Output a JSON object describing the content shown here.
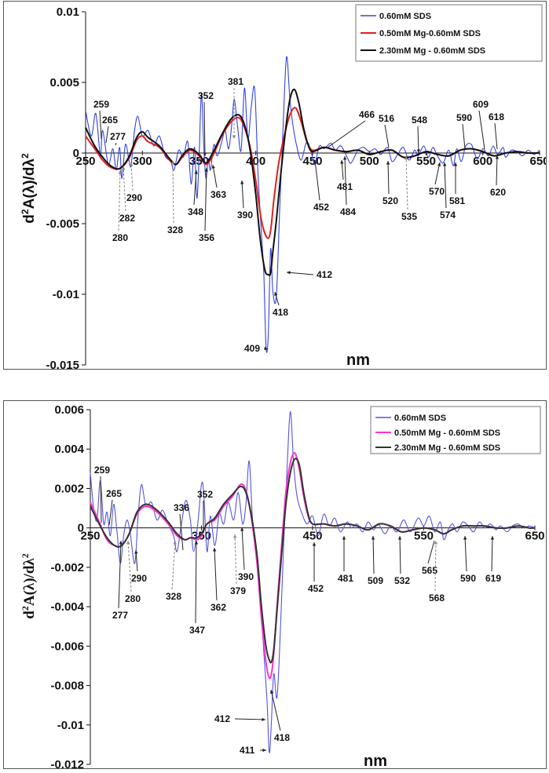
{
  "chart_data": [
    {
      "type": "line",
      "xlabel": "nm",
      "ylabel_main": "d",
      "ylabel_sup1": "2",
      "ylabel_mid": "A(λ)/dλ",
      "ylabel_sup2": "2",
      "xlim": [
        250,
        650
      ],
      "ylim": [
        -0.015,
        0.01
      ],
      "x_ticks": [
        "250",
        "300",
        "350",
        "400",
        "450",
        "500",
        "550",
        "600",
        "650"
      ],
      "x_tick_values": [
        250,
        300,
        350,
        400,
        450,
        500,
        550,
        600,
        650
      ],
      "y_ticks": [
        "0.01",
        "0.005",
        "0",
        "-0.005",
        "-0.01",
        "-0.015"
      ],
      "y_tick_values": [
        0.01,
        0.005,
        0,
        -0.005,
        -0.01,
        -0.015
      ],
      "series": [
        {
          "name": "0.60mM SDS",
          "color": "#3344dd",
          "x": [
            250,
            255,
            259,
            263,
            265,
            270,
            274,
            277,
            280,
            282,
            285,
            288,
            290,
            293,
            296,
            300,
            305,
            310,
            315,
            320,
            325,
            328,
            332,
            336,
            340,
            343,
            346,
            348,
            350,
            352,
            354,
            356,
            358,
            360,
            363,
            366,
            370,
            373,
            376,
            379,
            381,
            384,
            387,
            390,
            393,
            396,
            399,
            402,
            405,
            407,
            409,
            411,
            413,
            415,
            418,
            421,
            424,
            427,
            430,
            433,
            436,
            440,
            445,
            450,
            452,
            456,
            460,
            466,
            470,
            475,
            481,
            484,
            490,
            495,
            500,
            505,
            510,
            516,
            520,
            525,
            530,
            535,
            540,
            543,
            548,
            552,
            556,
            560,
            565,
            570,
            574,
            577,
            581,
            585,
            590,
            595,
            600,
            605,
            609,
            613,
            618,
            620,
            625,
            630,
            635,
            640,
            645,
            650
          ],
          "y": [
            0.003,
            0.0012,
            0.0028,
            -0.0002,
            0.0016,
            -0.0008,
            0.0003,
            -0.0012,
            0.0004,
            -0.0018,
            0.0006,
            -0.0004,
            -0.0009,
            0.0015,
            0.0026,
            0.0012,
            0.0016,
            0.0005,
            0.0012,
            -0.0002,
            -0.0006,
            -0.0012,
            0.0002,
            -0.0003,
            0.0008,
            -0.0022,
            0.0004,
            -0.0032,
            -0.0003,
            0.0042,
            0.0007,
            -0.0018,
            -0.0004,
            -0.0012,
            0.0006,
            -0.0002,
            0.0008,
            0.0016,
            0.0003,
            0.0022,
            0.0038,
            0.0018,
            0.0002,
            0.0046,
            0.001,
            0.0033,
            0.0045,
            -0.0016,
            -0.0058,
            -0.0085,
            -0.0138,
            -0.0128,
            -0.0068,
            -0.0098,
            -0.0102,
            -0.004,
            0.0018,
            0.0068,
            0.0038,
            0.0018,
            0.0005,
            -0.0005,
            0.0008,
            -0.0003,
            -0.0008,
            0.0005,
            0.0003,
            0.0007,
            0.0002,
            0.0005,
            -0.0004,
            -0.0007,
            0.0002,
            0.0004,
            0.0001,
            0.0003,
            -0.0001,
            0.0004,
            -0.0006,
            -0.0001,
            0.0004,
            -0.0005,
            0.0002,
            -0.0002,
            0.0005,
            -0.0003,
            0.0004,
            -0.0002,
            -0.0007,
            0.0002,
            -0.0009,
            0.0003,
            -0.0006,
            0.0005,
            0.0006,
            -0.0004,
            0.0003,
            -0.0002,
            0.0005,
            -0.0001,
            0.0004,
            -0.0003,
            0.0002,
            0.0001,
            -0.0002,
            0.0002,
            -0.0001,
            0.0002
          ]
        },
        {
          "name": "0.50mM Mg-0.60mM SDS",
          "color": "#e02020",
          "x": [
            250,
            258,
            265,
            272,
            280,
            288,
            295,
            300,
            305,
            315,
            325,
            330,
            335,
            342,
            350,
            356,
            362,
            370,
            378,
            385,
            390,
            395,
            400,
            405,
            410,
            413,
            416,
            420,
            425,
            430,
            435,
            440,
            445,
            450,
            460,
            470,
            480,
            490,
            500,
            510,
            520,
            530,
            540,
            550,
            560,
            570,
            580,
            590,
            600,
            610,
            620,
            630,
            640,
            650
          ],
          "y": [
            0.0012,
            0.0003,
            -0.0005,
            -0.001,
            -0.0011,
            -0.0004,
            0.0009,
            0.0012,
            0.0008,
            0.0004,
            -0.0006,
            -0.0008,
            -0.0003,
            0.0002,
            -0.0002,
            -0.0008,
            -0.0002,
            0.0012,
            0.0022,
            0.0025,
            0.0018,
            0.0004,
            -0.002,
            -0.0048,
            -0.006,
            -0.0055,
            -0.0032,
            -0.0008,
            0.0012,
            0.0027,
            0.0032,
            0.0022,
            0.0008,
            0.0002,
            0.0004,
            0.0002,
            0.0001,
            0.0002,
            -0.0001,
            0.0001,
            0.0002,
            -0.0003,
            -0.0002,
            0.0001,
            -0.0001,
            -0.0002,
            0.0002,
            0.0003,
            0.0001,
            -0.0002,
            0.0,
            0.0001,
            0.0,
            0.0
          ]
        },
        {
          "name": "2.30mM Mg - 0.60mM SDS",
          "color": "#111111",
          "x": [
            250,
            258,
            265,
            272,
            280,
            288,
            295,
            300,
            305,
            315,
            325,
            330,
            335,
            342,
            350,
            356,
            362,
            370,
            378,
            385,
            390,
            395,
            400,
            404,
            408,
            411,
            413,
            415,
            418,
            422,
            426,
            430,
            434,
            438,
            442,
            446,
            450,
            460,
            470,
            480,
            490,
            500,
            510,
            520,
            530,
            540,
            550,
            560,
            570,
            580,
            590,
            600,
            610,
            620,
            630,
            640,
            650
          ],
          "y": [
            0.0018,
            0.0005,
            -0.0003,
            -0.0009,
            -0.0011,
            -0.0003,
            0.0011,
            0.0015,
            0.0011,
            0.0005,
            -0.0005,
            -0.0008,
            -0.0002,
            0.0003,
            -0.0001,
            -0.0007,
            0.0,
            0.0013,
            0.0024,
            0.0027,
            0.002,
            0.0002,
            -0.003,
            -0.0062,
            -0.0083,
            -0.0086,
            -0.0085,
            -0.007,
            -0.0048,
            -0.0015,
            0.0015,
            0.0038,
            0.0045,
            0.0035,
            0.0018,
            0.0006,
            0.0001,
            0.0004,
            0.0002,
            0.0001,
            0.0002,
            -0.0001,
            0.0001,
            0.0002,
            -0.0003,
            -0.0002,
            0.0001,
            -0.0001,
            -0.0002,
            0.0002,
            0.0003,
            0.0001,
            -0.0002,
            0.0,
            0.0001,
            0.0,
            0.0
          ]
        }
      ],
      "legend_position": "top-right",
      "annotations": [
        "259",
        "265",
        "277",
        "280",
        "282",
        "290",
        "328",
        "348",
        "352",
        "356",
        "363",
        "381",
        "390",
        "409",
        "412",
        "418",
        "452",
        "466",
        "481",
        "484",
        "516",
        "520",
        "535",
        "548",
        "570",
        "574",
        "581",
        "590",
        "609",
        "618",
        "620"
      ]
    },
    {
      "type": "line",
      "xlabel": "nm",
      "ylabel_main": "d",
      "ylabel_sup1": "2",
      "ylabel_mid": "A(λ)/dλ",
      "ylabel_sup2": "2",
      "xlim": [
        250,
        650
      ],
      "ylim": [
        -0.012,
        0.006
      ],
      "x_ticks": [
        "250",
        "350",
        "450",
        "550",
        "650"
      ],
      "x_tick_values": [
        250,
        350,
        450,
        550,
        650
      ],
      "y_ticks": [
        "0.006",
        "0.004",
        "0.002",
        "0",
        "-0.002",
        "-0.004",
        "-0.006",
        "-0.008",
        "-0.01",
        "-0.012"
      ],
      "y_tick_values": [
        0.006,
        0.004,
        0.002,
        0,
        -0.002,
        -0.004,
        -0.006,
        -0.008,
        -0.01,
        -0.012
      ],
      "series": [
        {
          "name": "0.60mM SDS",
          "color": "#5555dd",
          "x": [
            250,
            253,
            256,
            259,
            262,
            265,
            268,
            271,
            274,
            277,
            280,
            283,
            286,
            290,
            293,
            296,
            300,
            305,
            310,
            315,
            320,
            325,
            328,
            332,
            336,
            340,
            343,
            347,
            350,
            352,
            355,
            358,
            362,
            366,
            370,
            374,
            379,
            383,
            387,
            390,
            393,
            396,
            400,
            403,
            406,
            409,
            411,
            413,
            415,
            418,
            421,
            424,
            427,
            430,
            433,
            436,
            440,
            445,
            450,
            455,
            460,
            465,
            470,
            475,
            481,
            485,
            490,
            495,
            500,
            505,
            509,
            515,
            520,
            526,
            532,
            538,
            545,
            550,
            555,
            560,
            565,
            568,
            572,
            576,
            580,
            585,
            590,
            595,
            600,
            605,
            610,
            615,
            619,
            625,
            630,
            635,
            640,
            645,
            650
          ],
          "y": [
            0.0028,
            0.001,
            0.0004,
            0.0024,
            0.0002,
            0.0008,
            -0.0004,
            0.0012,
            -0.0002,
            -0.0018,
            -0.0004,
            0.0004,
            -0.0003,
            -0.0018,
            0.0006,
            0.0022,
            0.0011,
            0.0013,
            0.0004,
            0.0009,
            0.0002,
            -0.0004,
            -0.0012,
            0.0002,
            0.0014,
            0.0004,
            -0.0012,
            0.0004,
            0.0022,
            0.0018,
            -0.0012,
            0.0006,
            -0.0009,
            0.0007,
            0.0002,
            0.0013,
            0.0004,
            0.0018,
            0.0002,
            0.0012,
            0.0034,
            0.0004,
            -0.0013,
            -0.0034,
            -0.0062,
            -0.0088,
            -0.0114,
            -0.0098,
            -0.0074,
            -0.0086,
            -0.0052,
            -0.0008,
            0.003,
            0.0059,
            0.0032,
            0.0016,
            0.0008,
            0.0002,
            0.0006,
            -0.0004,
            0.0007,
            0.0001,
            0.0005,
            -0.0002,
            0.0003,
            0.0,
            0.0002,
            -0.0002,
            0.0003,
            -0.0001,
            0.0002,
            -0.0003,
            0.0001,
            -0.0002,
            0.0004,
            -0.0002,
            0.0005,
            0.0001,
            0.0006,
            -0.0002,
            0.0003,
            -0.0006,
            -0.0001,
            0.0002,
            -0.0002,
            0.0003,
            0.0001,
            -0.0002,
            0.0003,
            0.0,
            0.0002,
            -0.0001,
            0.0001,
            -0.0002,
            0.0001,
            0.0002,
            0.0,
            0.0001,
            0.0
          ]
        },
        {
          "name": "0.50mM Mg - 0.60mM SDS",
          "color": "#ff33cc",
          "x": [
            250,
            258,
            265,
            272,
            278,
            285,
            292,
            300,
            310,
            320,
            328,
            335,
            340,
            346,
            350,
            355,
            362,
            370,
            378,
            385,
            390,
            395,
            400,
            404,
            408,
            411,
            413,
            415,
            418,
            422,
            426,
            430,
            434,
            438,
            442,
            446,
            450,
            460,
            470,
            480,
            490,
            500,
            510,
            520,
            530,
            540,
            550,
            560,
            568,
            575,
            585,
            595,
            605,
            615,
            625,
            635,
            645,
            650
          ],
          "y": [
            0.0013,
            0.0003,
            -0.0006,
            -0.0009,
            -0.0009,
            -0.0003,
            0.0007,
            0.0011,
            0.0008,
            0.0002,
            -0.0004,
            -0.0006,
            -0.0005,
            -0.0006,
            -0.0004,
            0.0002,
            0.0004,
            0.0011,
            0.0016,
            0.0022,
            0.0019,
            0.0005,
            -0.0018,
            -0.0046,
            -0.0068,
            -0.0076,
            -0.0074,
            -0.0064,
            -0.004,
            -0.001,
            0.0018,
            0.0033,
            0.0038,
            0.003,
            0.0016,
            0.0006,
            0.0002,
            0.0002,
            0.0001,
            0.0002,
            0.0001,
            -0.0001,
            0.0002,
            0.0001,
            -0.0002,
            -0.0001,
            0.0,
            -0.0001,
            -0.0003,
            -0.0001,
            0.0001,
            0.0001,
            0.0001,
            0.0,
            0.0,
            0.0001,
            0.0,
            0.0
          ]
        },
        {
          "name": "2.30mM Mg - 0.60mM SDS",
          "color": "#333333",
          "x": [
            250,
            258,
            265,
            272,
            278,
            285,
            292,
            300,
            310,
            320,
            328,
            335,
            340,
            346,
            350,
            355,
            362,
            370,
            378,
            385,
            390,
            395,
            400,
            404,
            408,
            411,
            413,
            415,
            418,
            422,
            426,
            430,
            434,
            438,
            442,
            446,
            450,
            460,
            470,
            480,
            490,
            500,
            510,
            520,
            530,
            540,
            550,
            560,
            568,
            575,
            585,
            595,
            605,
            615,
            625,
            635,
            645,
            650
          ],
          "y": [
            0.0011,
            0.0002,
            -0.0005,
            -0.0009,
            -0.0009,
            -0.0003,
            0.0008,
            0.0012,
            0.0009,
            0.0003,
            -0.0003,
            -0.0006,
            -0.0005,
            -0.0005,
            -0.0003,
            0.0002,
            0.0005,
            0.0012,
            0.0017,
            0.0021,
            0.0018,
            0.0006,
            -0.0014,
            -0.004,
            -0.006,
            -0.0067,
            -0.0068,
            -0.0062,
            -0.0042,
            -0.0014,
            0.0012,
            0.0028,
            0.0035,
            0.0032,
            0.0018,
            0.0007,
            0.0002,
            0.0002,
            0.0001,
            0.0002,
            0.0001,
            -0.0001,
            0.0002,
            0.0001,
            -0.0002,
            -0.0001,
            0.0,
            -0.0001,
            -0.0003,
            -0.0001,
            0.0001,
            0.0001,
            0.0001,
            0.0,
            0.0,
            0.0001,
            0.0,
            0.0
          ]
        }
      ],
      "legend_position": "top-right",
      "annotations": [
        "259",
        "265",
        "277",
        "280",
        "290",
        "328",
        "336",
        "347",
        "352",
        "362",
        "379",
        "390",
        "411",
        "412",
        "418",
        "452",
        "481",
        "509",
        "532",
        "565",
        "568",
        "590",
        "619"
      ]
    }
  ]
}
